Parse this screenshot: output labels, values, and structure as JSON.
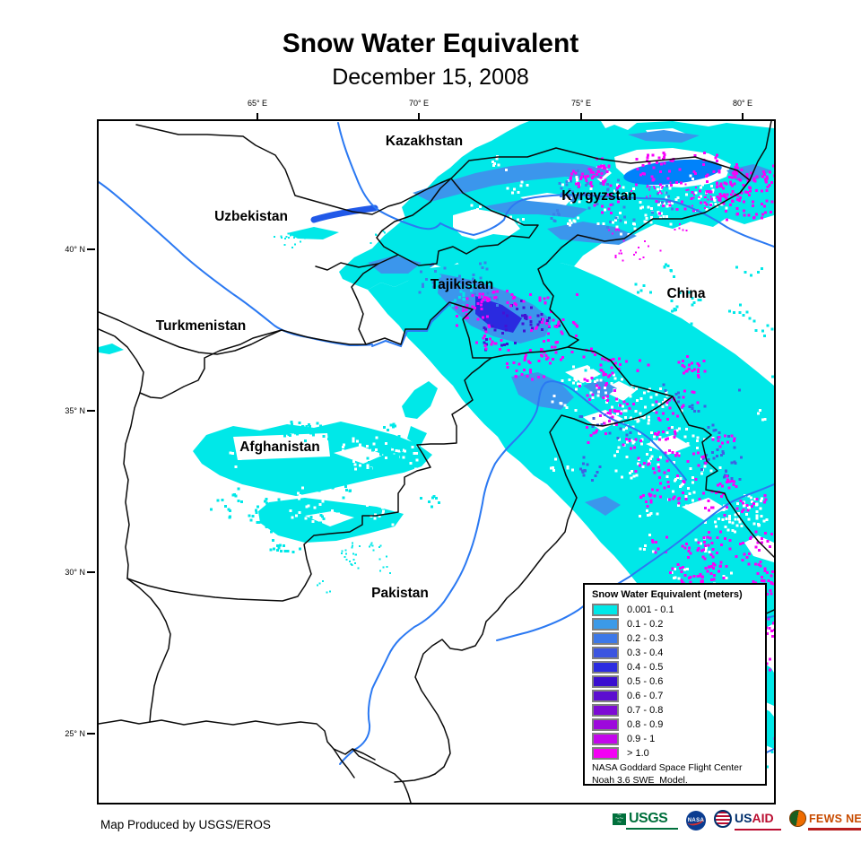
{
  "title": "Snow Water Equivalent",
  "subtitle": "December 15, 2008",
  "map": {
    "x_axis_labels": [
      "65° E",
      "70° E",
      "75° E",
      "80° E"
    ],
    "y_axis_labels": [
      "40° N",
      "35° N",
      "30° N",
      "25° N"
    ],
    "country_labels": [
      "Kazakhstan",
      "Kyrgyzstan",
      "Uzbekistan",
      "Tajikistan",
      "China",
      "Turkmenistan",
      "Afghanistan",
      "Pakistan"
    ],
    "colors": {
      "snow_light": "#00E8E8",
      "snow_deep": "#F802F8",
      "river": "#2B79F2",
      "lake": "#0082FA",
      "border": "#0A0A0A"
    }
  },
  "legend": {
    "title": "Snow Water Equivalent (meters)",
    "classes": [
      {
        "label": "0.001 - 0.1",
        "color": "#00E8E8"
      },
      {
        "label": "0.1 - 0.2",
        "color": "#3B9AE8"
      },
      {
        "label": "0.2 - 0.3",
        "color": "#3C78E8"
      },
      {
        "label": "0.3 - 0.4",
        "color": "#3C55E0"
      },
      {
        "label": "0.4 - 0.5",
        "color": "#2B2BE0"
      },
      {
        "label": "0.5 - 0.6",
        "color": "#3A0ED0"
      },
      {
        "label": "0.6 - 0.7",
        "color": "#5C0ED0"
      },
      {
        "label": "0.7 - 0.8",
        "color": "#7D0BD4"
      },
      {
        "label": "0.8 - 0.9",
        "color": "#9D09DC"
      },
      {
        "label": "0.9 - 1",
        "color": "#C406EC"
      },
      {
        "label": "> 1.0",
        "color": "#F400F4"
      }
    ],
    "source_line1": "NASA Goddard Space Flight Center",
    "source_line2": "Noah 3.6 SWE  Model."
  },
  "footer": {
    "credit": "Map Produced by USGS/EROS",
    "logos": {
      "usgs": "USGS",
      "nasa": "NASA",
      "usaid_us": "US",
      "usaid_aid": "AID",
      "fews": "FEWS NET"
    }
  }
}
